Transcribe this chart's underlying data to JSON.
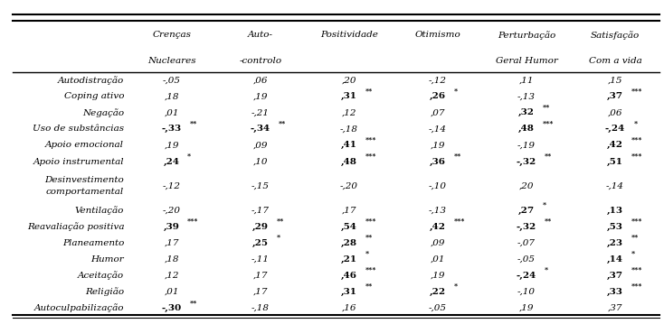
{
  "title": "",
  "col_headers": [
    [
      "Crenças",
      "Nucleares"
    ],
    [
      "Auto-",
      "-controlo"
    ],
    [
      "Positividade",
      ""
    ],
    [
      "Otimismo",
      ""
    ],
    [
      "Perturbação",
      "Geral Humor"
    ],
    [
      "Satisfação",
      "Com a vida"
    ]
  ],
  "row_labels": [
    "Autodistração",
    "Coping ativo",
    "Negação",
    "Uso de substâncias",
    "Apoio emocional",
    "Apoio instrumental",
    "Desinvestimento\ncomportamental",
    "Ventilação",
    "Reavaliação positiva",
    "Planeamento",
    "Humor",
    "Aceitação",
    "Religião",
    "Autoculpabilização"
  ],
  "cell_data": [
    [
      {
        "text": "-,05",
        "bold": false,
        "sup": ""
      },
      {
        "text": ",06",
        "bold": false,
        "sup": ""
      },
      {
        "text": ",20",
        "bold": false,
        "sup": ""
      },
      {
        "text": "-,12",
        "bold": false,
        "sup": ""
      },
      {
        "text": ",11",
        "bold": false,
        "sup": ""
      },
      {
        "text": ",15",
        "bold": false,
        "sup": ""
      }
    ],
    [
      {
        "text": ",18",
        "bold": false,
        "sup": ""
      },
      {
        "text": ",19",
        "bold": false,
        "sup": ""
      },
      {
        "text": ",31",
        "bold": true,
        "sup": "**"
      },
      {
        "text": ",26",
        "bold": true,
        "sup": "*"
      },
      {
        "text": "-,13",
        "bold": false,
        "sup": ""
      },
      {
        "text": ",37",
        "bold": true,
        "sup": "***"
      }
    ],
    [
      {
        "text": ",01",
        "bold": false,
        "sup": ""
      },
      {
        "text": "-,21",
        "bold": false,
        "sup": ""
      },
      {
        "text": ",12",
        "bold": false,
        "sup": ""
      },
      {
        "text": ",07",
        "bold": false,
        "sup": ""
      },
      {
        "text": ",32",
        "bold": true,
        "sup": "**"
      },
      {
        "text": ",06",
        "bold": false,
        "sup": ""
      }
    ],
    [
      {
        "text": "-,33",
        "bold": true,
        "sup": "**"
      },
      {
        "text": "-,34",
        "bold": true,
        "sup": "**"
      },
      {
        "text": "-,18",
        "bold": false,
        "sup": ""
      },
      {
        "text": "-,14",
        "bold": false,
        "sup": ""
      },
      {
        "text": ",48",
        "bold": true,
        "sup": "***"
      },
      {
        "text": "-,24",
        "bold": true,
        "sup": "*"
      }
    ],
    [
      {
        "text": ",19",
        "bold": false,
        "sup": ""
      },
      {
        "text": ",09",
        "bold": false,
        "sup": ""
      },
      {
        "text": ",41",
        "bold": true,
        "sup": "***"
      },
      {
        "text": ",19",
        "bold": false,
        "sup": ""
      },
      {
        "text": "-,19",
        "bold": false,
        "sup": ""
      },
      {
        "text": ",42",
        "bold": true,
        "sup": "***"
      }
    ],
    [
      {
        "text": ",24",
        "bold": true,
        "sup": "*"
      },
      {
        "text": ",10",
        "bold": false,
        "sup": ""
      },
      {
        "text": ",48",
        "bold": true,
        "sup": "***"
      },
      {
        "text": ",36",
        "bold": true,
        "sup": "**"
      },
      {
        "text": "-,32",
        "bold": true,
        "sup": "**"
      },
      {
        "text": ",51",
        "bold": true,
        "sup": "***"
      }
    ],
    [
      {
        "text": "-,12",
        "bold": false,
        "sup": ""
      },
      {
        "text": "-,15",
        "bold": false,
        "sup": ""
      },
      {
        "text": "-,20",
        "bold": false,
        "sup": ""
      },
      {
        "text": "-,10",
        "bold": false,
        "sup": ""
      },
      {
        "text": ",20",
        "bold": false,
        "sup": ""
      },
      {
        "text": "-,14",
        "bold": false,
        "sup": ""
      }
    ],
    [
      {
        "text": "-,20",
        "bold": false,
        "sup": ""
      },
      {
        "text": "-,17",
        "bold": false,
        "sup": ""
      },
      {
        "text": ",17",
        "bold": false,
        "sup": ""
      },
      {
        "text": "-,13",
        "bold": false,
        "sup": ""
      },
      {
        "text": ",27",
        "bold": true,
        "sup": "*"
      },
      {
        "text": ",13",
        "bold": true,
        "sup": ""
      }
    ],
    [
      {
        "text": ",39",
        "bold": true,
        "sup": "***"
      },
      {
        "text": ",29",
        "bold": true,
        "sup": "**"
      },
      {
        "text": ",54",
        "bold": true,
        "sup": "***"
      },
      {
        "text": ",42",
        "bold": true,
        "sup": "***"
      },
      {
        "text": "-,32",
        "bold": true,
        "sup": "**"
      },
      {
        "text": ",53",
        "bold": true,
        "sup": "***"
      }
    ],
    [
      {
        "text": ",17",
        "bold": false,
        "sup": ""
      },
      {
        "text": ",25",
        "bold": true,
        "sup": "*"
      },
      {
        "text": ",28",
        "bold": true,
        "sup": "**"
      },
      {
        "text": ",09",
        "bold": false,
        "sup": ""
      },
      {
        "text": "-,07",
        "bold": false,
        "sup": ""
      },
      {
        "text": ",23",
        "bold": true,
        "sup": "**"
      }
    ],
    [
      {
        "text": ",18",
        "bold": false,
        "sup": ""
      },
      {
        "text": "-,11",
        "bold": false,
        "sup": ""
      },
      {
        "text": ",21",
        "bold": true,
        "sup": "*"
      },
      {
        "text": ",01",
        "bold": false,
        "sup": ""
      },
      {
        "text": "-,05",
        "bold": false,
        "sup": ""
      },
      {
        "text": ",14",
        "bold": true,
        "sup": "*"
      }
    ],
    [
      {
        "text": ",12",
        "bold": false,
        "sup": ""
      },
      {
        "text": ",17",
        "bold": false,
        "sup": ""
      },
      {
        "text": ",46",
        "bold": true,
        "sup": "***"
      },
      {
        "text": ",19",
        "bold": false,
        "sup": ""
      },
      {
        "text": "-,24",
        "bold": true,
        "sup": "*"
      },
      {
        "text": ",37",
        "bold": true,
        "sup": "***"
      }
    ],
    [
      {
        "text": ",01",
        "bold": false,
        "sup": ""
      },
      {
        "text": ",17",
        "bold": false,
        "sup": ""
      },
      {
        "text": ",31",
        "bold": true,
        "sup": "**"
      },
      {
        "text": ",22",
        "bold": true,
        "sup": "*"
      },
      {
        "text": "-,10",
        "bold": false,
        "sup": ""
      },
      {
        "text": ",33",
        "bold": true,
        "sup": "***"
      }
    ],
    [
      {
        "text": "-,30",
        "bold": true,
        "sup": "**"
      },
      {
        "text": "-,18",
        "bold": false,
        "sup": ""
      },
      {
        "text": ",16",
        "bold": false,
        "sup": ""
      },
      {
        "text": "-,05",
        "bold": false,
        "sup": ""
      },
      {
        "text": ",19",
        "bold": false,
        "sup": ""
      },
      {
        "text": ",37",
        "bold": false,
        "sup": ""
      }
    ]
  ],
  "desinvestimento_col6_empty": true,
  "ventilacao_col6_bold": true,
  "bg_color": "#ffffff",
  "text_color": "#000000",
  "line_color": "#000000"
}
